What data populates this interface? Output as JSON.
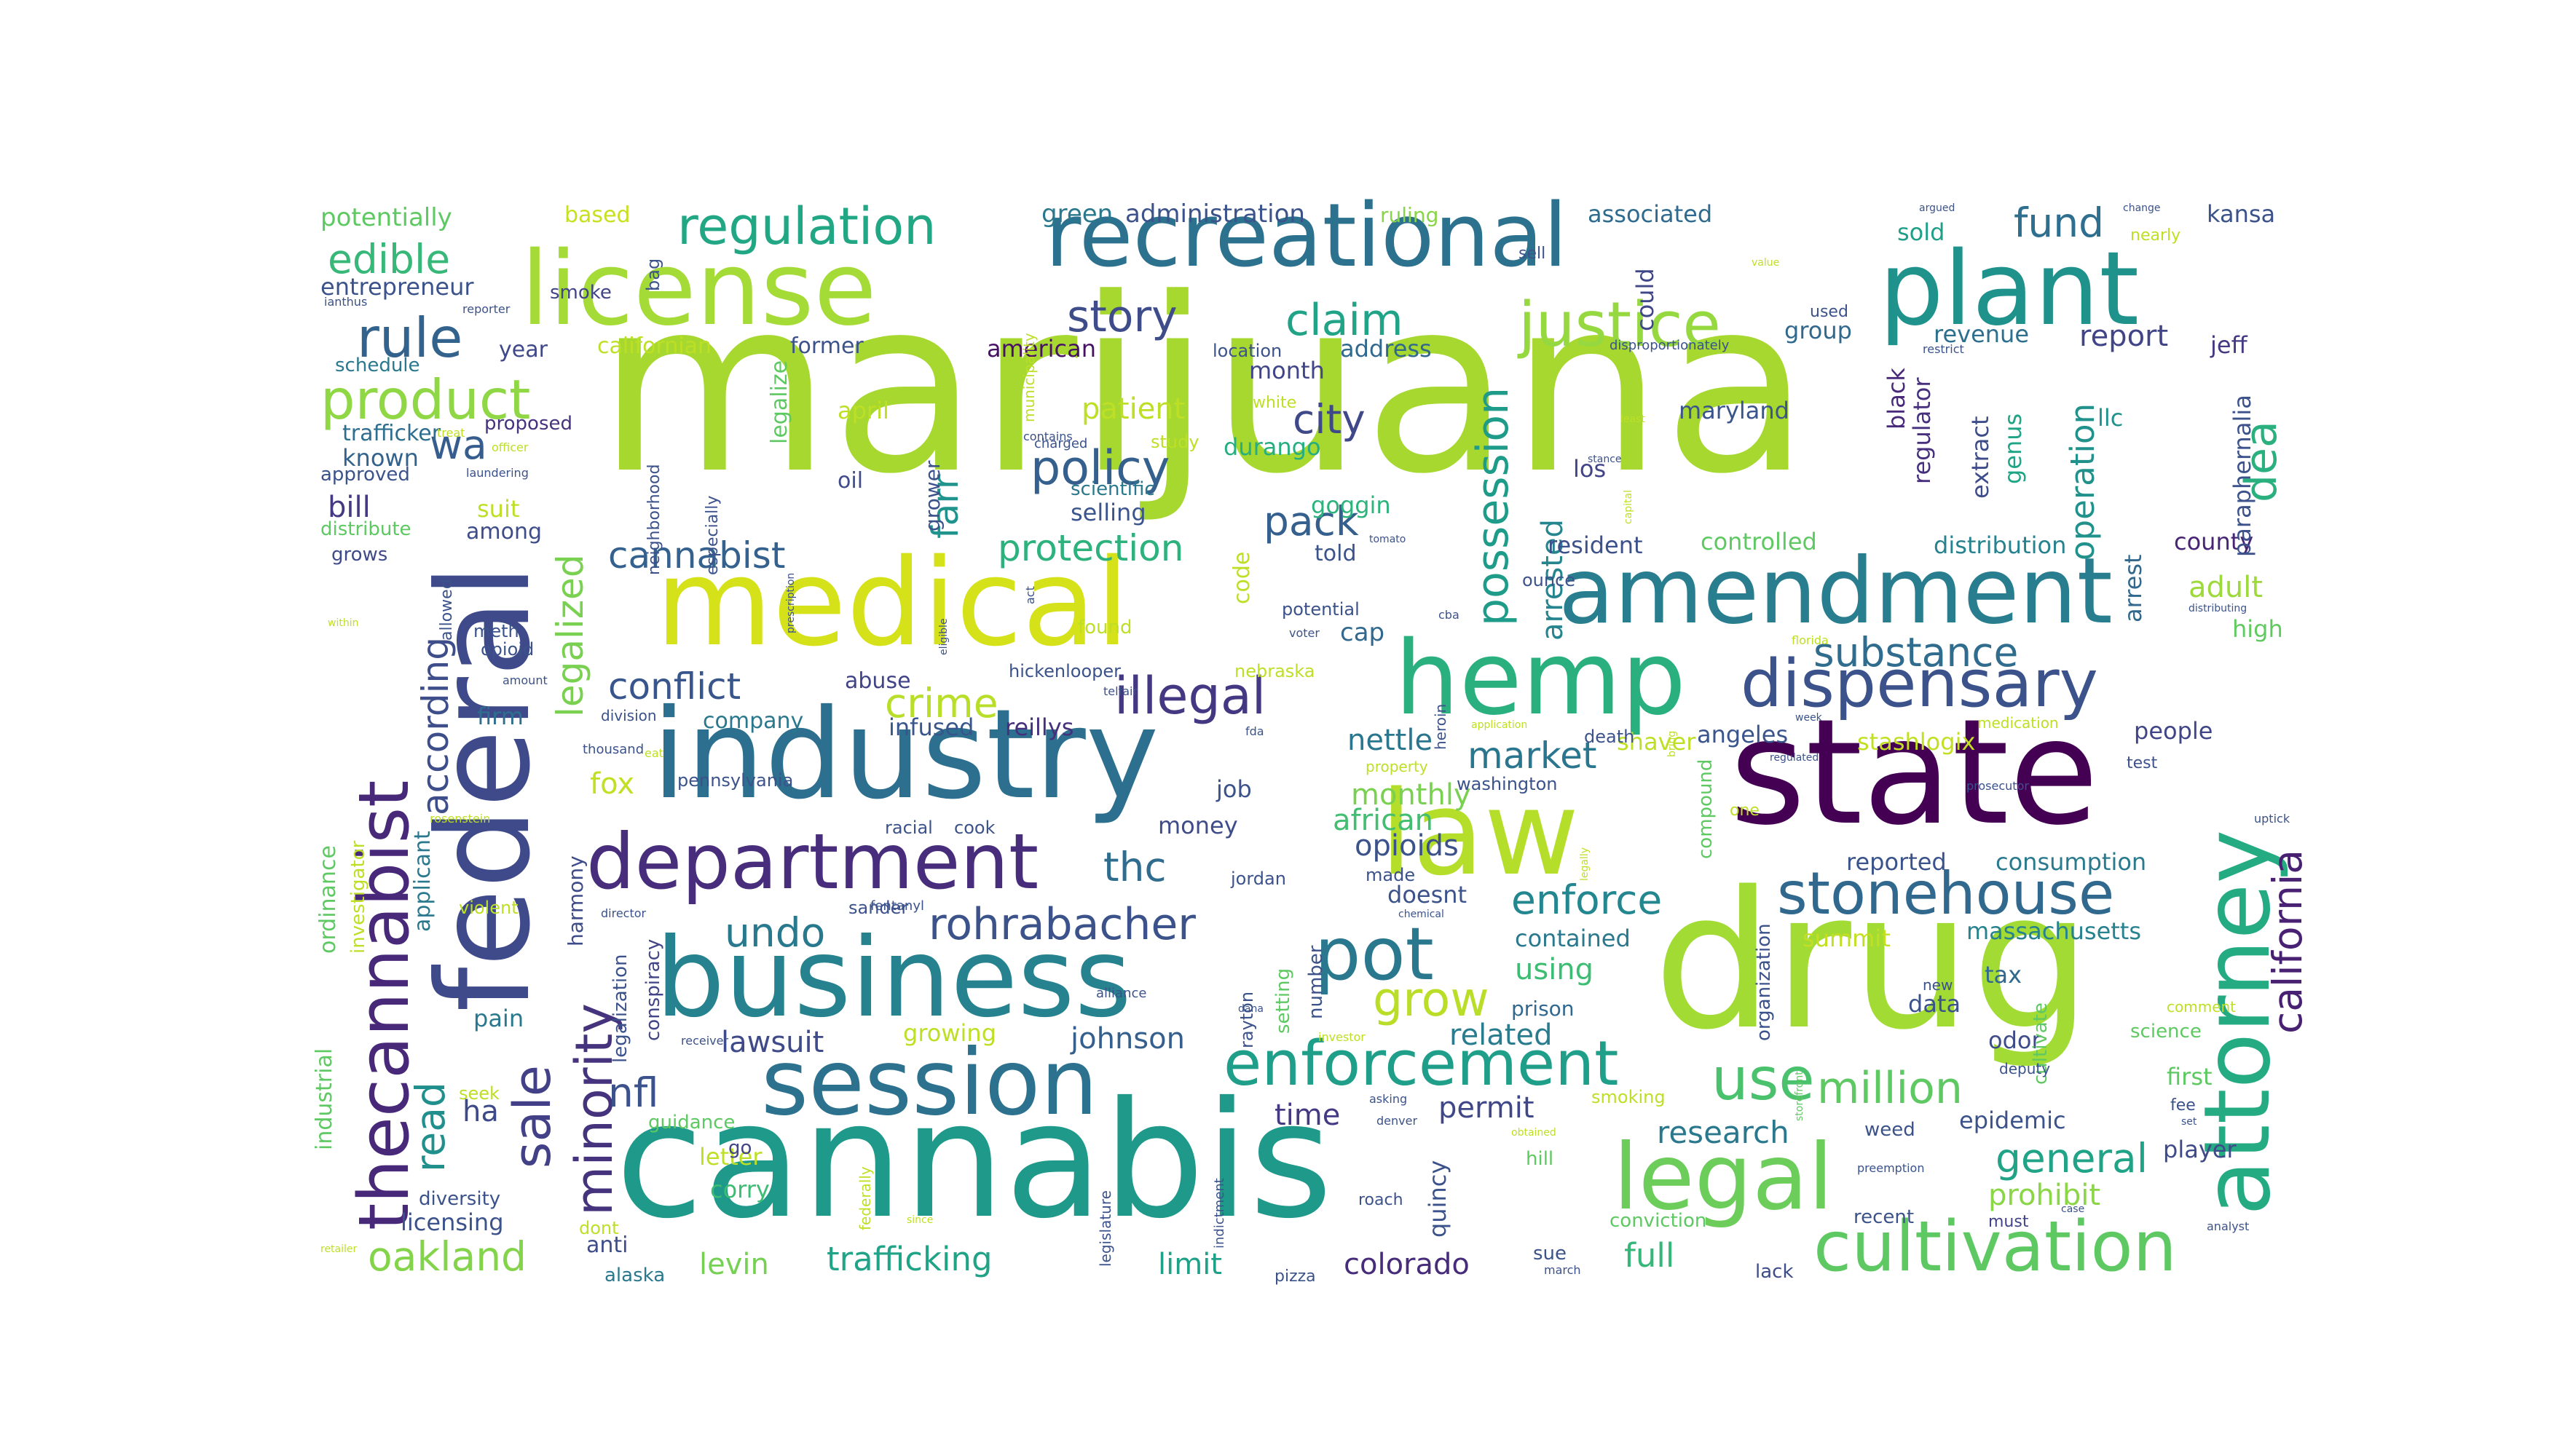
{
  "words": [
    {
      "text": "marijuana",
      "color": "#a6d82f"
    },
    {
      "text": "cannabis",
      "color": "#1f998a"
    },
    {
      "text": "drug",
      "color": "#a2db34"
    },
    {
      "text": "state",
      "color": "#440154"
    },
    {
      "text": "federal",
      "color": "#3e4a89"
    },
    {
      "text": "industry",
      "color": "#2d6f8e"
    },
    {
      "text": "medical",
      "color": "#d5e21a"
    },
    {
      "text": "business",
      "color": "#26828e"
    },
    {
      "text": "law",
      "color": "#b5de2b"
    },
    {
      "text": "license",
      "color": "#a5db36"
    },
    {
      "text": "recreational",
      "color": "#2c728e"
    },
    {
      "text": "plant",
      "color": "#20928c"
    },
    {
      "text": "hemp",
      "color": "#2ab07f"
    },
    {
      "text": "session",
      "color": "#2c718e"
    },
    {
      "text": "attorney",
      "color": "#25ab82"
    },
    {
      "text": "amendment",
      "color": "#287d8e"
    },
    {
      "text": "department",
      "color": "#472d7b"
    },
    {
      "text": "legal",
      "color": "#6ccd5a"
    },
    {
      "text": "thecannabist",
      "color": "#482878"
    },
    {
      "text": "cultivation",
      "color": "#5ec962"
    },
    {
      "text": "dispensary",
      "color": "#3b528b"
    },
    {
      "text": "enforcement",
      "color": "#1f9e89"
    },
    {
      "text": "stonehouse",
      "color": "#31688e"
    },
    {
      "text": "pot",
      "color": "#2a788e"
    },
    {
      "text": "regulation",
      "color": "#22a785"
    },
    {
      "text": "justice",
      "color": "#95d840"
    },
    {
      "text": "product",
      "color": "#8fd744"
    },
    {
      "text": "possession",
      "color": "#1e9c89"
    },
    {
      "text": "rohrabacher",
      "color": "#3b528b"
    },
    {
      "text": "minority",
      "color": "#46337e"
    },
    {
      "text": "sale",
      "color": "#424086"
    },
    {
      "text": "illegal",
      "color": "#453882"
    },
    {
      "text": "policy",
      "color": "#35608d"
    },
    {
      "text": "grow",
      "color": "#bade28"
    },
    {
      "text": "story",
      "color": "#3e4c8a"
    },
    {
      "text": "claim",
      "color": "#20a386"
    },
    {
      "text": "rule",
      "color": "#33638d"
    },
    {
      "text": "oakland",
      "color": "#84d44b"
    },
    {
      "text": "edible",
      "color": "#37b878"
    },
    {
      "text": "california",
      "color": "#482173"
    },
    {
      "text": "substance",
      "color": "#2f6c8e"
    },
    {
      "text": "million",
      "color": "#5ec962"
    },
    {
      "text": "use",
      "color": "#4ac16d"
    },
    {
      "text": "crime",
      "color": "#b8de29"
    },
    {
      "text": "pack",
      "color": "#355f8d"
    },
    {
      "text": "undo",
      "color": "#29798e"
    },
    {
      "text": "legalized",
      "color": "#7ad151"
    },
    {
      "text": "according",
      "color": "#3d4e8a"
    },
    {
      "text": "market",
      "color": "#2a768e"
    },
    {
      "text": "conflict",
      "color": "#39568c"
    },
    {
      "text": "enforce",
      "color": "#24868e"
    },
    {
      "text": "general",
      "color": "#20a386"
    },
    {
      "text": "city",
      "color": "#3f4889"
    },
    {
      "text": "dea",
      "color": "#2ab07f"
    },
    {
      "text": "protection",
      "color": "#2db27d"
    },
    {
      "text": "cannabist",
      "color": "#34618d"
    },
    {
      "text": "farr",
      "color": "#20938c"
    },
    {
      "text": "fund",
      "color": "#2e6e8e"
    },
    {
      "text": "arrested",
      "color": "#25858e"
    },
    {
      "text": "operation",
      "color": "#21918c"
    },
    {
      "text": "read",
      "color": "#21908d"
    },
    {
      "text": "nfl",
      "color": "#3b528b"
    },
    {
      "text": "thc",
      "color": "#2f6c8e"
    },
    {
      "text": "research",
      "color": "#2a788e"
    },
    {
      "text": "trafficking",
      "color": "#20a386"
    },
    {
      "text": "lawsuit",
      "color": "#3e4a89"
    },
    {
      "text": "johnson",
      "color": "#355f8d"
    },
    {
      "text": "levin",
      "color": "#75d054"
    },
    {
      "text": "colorado",
      "color": "#472c7a"
    },
    {
      "text": "full",
      "color": "#35b779"
    },
    {
      "text": "limit",
      "color": "#1fa088"
    },
    {
      "text": "time",
      "color": "#443a83"
    },
    {
      "text": "permit",
      "color": "#3f4788"
    },
    {
      "text": "related",
      "color": "#297b8e"
    },
    {
      "text": "using",
      "color": "#3dbc74"
    },
    {
      "text": "prohibit",
      "color": "#8bd646"
    },
    {
      "text": "reported",
      "color": "#3a538b"
    },
    {
      "text": "consumption",
      "color": "#297a8e"
    },
    {
      "text": "massachusetts",
      "color": "#26828e"
    },
    {
      "text": "summit",
      "color": "#c2df23"
    },
    {
      "text": "people",
      "color": "#404588"
    },
    {
      "text": "adult",
      "color": "#9dd93b"
    },
    {
      "text": "county",
      "color": "#482475"
    },
    {
      "text": "paraphernalia",
      "color": "#3b528b"
    },
    {
      "text": "high",
      "color": "#60ca60"
    },
    {
      "text": "arrest",
      "color": "#31688e"
    },
    {
      "text": "llc",
      "color": "#21918c"
    },
    {
      "text": "genus",
      "color": "#20a486"
    },
    {
      "text": "extract",
      "color": "#3e4c8a"
    },
    {
      "text": "regulator",
      "color": "#46307e"
    },
    {
      "text": "black",
      "color": "#482979"
    },
    {
      "text": "maryland",
      "color": "#3a548c"
    },
    {
      "text": "los",
      "color": "#414487"
    },
    {
      "text": "could",
      "color": "#3f4788"
    },
    {
      "text": "resident",
      "color": "#3c508b"
    },
    {
      "text": "controlled",
      "color": "#5ec962"
    },
    {
      "text": "distribution",
      "color": "#26828e"
    },
    {
      "text": "report",
      "color": "#414487"
    },
    {
      "text": "revenue",
      "color": "#2e6e8e"
    },
    {
      "text": "sold",
      "color": "#1f9f88"
    },
    {
      "text": "group",
      "color": "#31688e"
    },
    {
      "text": "associated",
      "color": "#2f6b8e"
    },
    {
      "text": "kansa",
      "color": "#3b528b"
    },
    {
      "text": "jeff",
      "color": "#443983"
    },
    {
      "text": "goggin",
      "color": "#2eb37c"
    },
    {
      "text": "selling",
      "color": "#3a548c"
    },
    {
      "text": "patient",
      "color": "#bddf26"
    },
    {
      "text": "month",
      "color": "#404588"
    },
    {
      "text": "durango",
      "color": "#26ad81"
    },
    {
      "text": "address",
      "color": "#31688e"
    },
    {
      "text": "american",
      "color": "#471164"
    },
    {
      "text": "former",
      "color": "#3b528b"
    },
    {
      "text": "californian",
      "color": "#bddf26"
    },
    {
      "text": "year",
      "color": "#3f4889"
    },
    {
      "text": "wa",
      "color": "#365d8d"
    },
    {
      "text": "known",
      "color": "#33638d"
    },
    {
      "text": "bill",
      "color": "#443983"
    },
    {
      "text": "approved",
      "color": "#3b528b"
    },
    {
      "text": "distribute",
      "color": "#5ec962"
    },
    {
      "text": "grows",
      "color": "#3e4a89"
    },
    {
      "text": "trafficker",
      "color": "#2e6e8e"
    },
    {
      "text": "proposed",
      "color": "#46337e"
    },
    {
      "text": "schedule",
      "color": "#2a788e"
    },
    {
      "text": "entrepreneur",
      "color": "#3b528b"
    },
    {
      "text": "smoke",
      "color": "#414487"
    },
    {
      "text": "potentially",
      "color": "#5ec962"
    },
    {
      "text": "based",
      "color": "#c8e020"
    },
    {
      "text": "green",
      "color": "#2a788e"
    },
    {
      "text": "administration",
      "color": "#3b528b"
    },
    {
      "text": "ruling",
      "color": "#89d548"
    },
    {
      "text": "nettle",
      "color": "#2a768e"
    },
    {
      "text": "monthly",
      "color": "#7ad151"
    },
    {
      "text": "african",
      "color": "#42be71"
    },
    {
      "text": "opioids",
      "color": "#3b528b"
    },
    {
      "text": "fox",
      "color": "#c2df23"
    },
    {
      "text": "firm",
      "color": "#2e6e8e"
    },
    {
      "text": "ha",
      "color": "#3e4989"
    },
    {
      "text": "among",
      "color": "#3e4c8a"
    },
    {
      "text": "suit",
      "color": "#bddf26"
    },
    {
      "text": "company",
      "color": "#2a788e"
    },
    {
      "text": "infused",
      "color": "#39568c"
    },
    {
      "text": "abuse",
      "color": "#414487"
    },
    {
      "text": "reillys",
      "color": "#46307e"
    },
    {
      "text": "job",
      "color": "#3b528b"
    },
    {
      "text": "money",
      "color": "#3e4c8a"
    },
    {
      "text": "doesnt",
      "color": "#3b528b"
    },
    {
      "text": "contained",
      "color": "#2a788e"
    },
    {
      "text": "prison",
      "color": "#31688e"
    },
    {
      "text": "angeles",
      "color": "#3a548c"
    },
    {
      "text": "shaver",
      "color": "#bddf26"
    },
    {
      "text": "stashlogix",
      "color": "#c2df23"
    },
    {
      "text": "odor",
      "color": "#3e4c8a"
    },
    {
      "text": "data",
      "color": "#3b528b"
    },
    {
      "text": "tax",
      "color": "#31688e"
    },
    {
      "text": "player",
      "color": "#3e4a89"
    },
    {
      "text": "epidemic",
      "color": "#3b528b"
    },
    {
      "text": "first",
      "color": "#5ec962"
    },
    {
      "text": "weed",
      "color": "#3b528b"
    },
    {
      "text": "lack",
      "color": "#3e4c8a"
    },
    {
      "text": "recent",
      "color": "#3b528b"
    },
    {
      "text": "must",
      "color": "#414487"
    },
    {
      "text": "science",
      "color": "#5ec962"
    },
    {
      "text": "fee",
      "color": "#3b528b"
    },
    {
      "text": "licensing",
      "color": "#3b528b"
    },
    {
      "text": "corry",
      "color": "#3dbc74"
    },
    {
      "text": "letter",
      "color": "#bddf26"
    },
    {
      "text": "pain",
      "color": "#2a788e"
    },
    {
      "text": "anti",
      "color": "#3e4c8a"
    },
    {
      "text": "alaska",
      "color": "#2a788e"
    },
    {
      "text": "go",
      "color": "#414487"
    },
    {
      "text": "growing",
      "color": "#bddf26"
    },
    {
      "text": "quincy",
      "color": "#3b528b"
    },
    {
      "text": "sue",
      "color": "#3b528b"
    },
    {
      "text": "cap",
      "color": "#31688e"
    },
    {
      "text": "told",
      "color": "#3b528b"
    },
    {
      "text": "code",
      "color": "#bddf26"
    },
    {
      "text": "oil",
      "color": "#3e4c8a"
    },
    {
      "text": "april",
      "color": "#bddf26"
    },
    {
      "text": "legalize",
      "color": "#5ec962"
    },
    {
      "text": "grower",
      "color": "#3b528b"
    },
    {
      "text": "ordinance",
      "color": "#5ec962"
    },
    {
      "text": "industrial",
      "color": "#5ec962"
    },
    {
      "text": "investigator",
      "color": "#bddf26"
    },
    {
      "text": "applicant",
      "color": "#2a788e"
    },
    {
      "text": "legalization",
      "color": "#3b528b"
    },
    {
      "text": "conspiracy",
      "color": "#414487"
    },
    {
      "text": "organization",
      "color": "#3b528b"
    },
    {
      "text": "compound",
      "color": "#5ec962"
    },
    {
      "text": "cultivate",
      "color": "#5ec962"
    },
    {
      "text": "setting",
      "color": "#5ec962"
    },
    {
      "text": "number",
      "color": "#3b528b"
    },
    {
      "text": "potential",
      "color": "#3b528b"
    },
    {
      "text": "found",
      "color": "#bddf26"
    },
    {
      "text": "scientific",
      "color": "#2a788e"
    },
    {
      "text": "study",
      "color": "#bddf26"
    },
    {
      "text": "harmony",
      "color": "#3e4c8a"
    },
    {
      "text": "opioid",
      "color": "#3b528b"
    },
    {
      "text": "pennsylvania",
      "color": "#3b528b"
    },
    {
      "text": "racial",
      "color": "#3b528b"
    },
    {
      "text": "cook",
      "color": "#3b528b"
    },
    {
      "text": "hickenlooper",
      "color": "#3b528b"
    },
    {
      "text": "sander",
      "color": "#3b528b"
    },
    {
      "text": "jordan",
      "color": "#3b528b"
    },
    {
      "text": "nebraska",
      "color": "#bddf26"
    },
    {
      "text": "washington",
      "color": "#3b528b"
    },
    {
      "text": "made",
      "color": "#3b528b"
    },
    {
      "text": "rayton",
      "color": "#3b528b"
    },
    {
      "text": "death",
      "color": "#3b528b"
    },
    {
      "text": "hill",
      "color": "#5ec962"
    },
    {
      "text": "smoking",
      "color": "#bddf26"
    },
    {
      "text": "conviction",
      "color": "#5ec962"
    },
    {
      "text": "guidance",
      "color": "#5ec962"
    },
    {
      "text": "diversity",
      "color": "#3b528b"
    },
    {
      "text": "dont",
      "color": "#bddf26"
    },
    {
      "text": "seek",
      "color": "#bddf26"
    },
    {
      "text": "violent",
      "color": "#bddf26"
    },
    {
      "text": "meth",
      "color": "#3b528b"
    },
    {
      "text": "allowed",
      "color": "#3b528b"
    },
    {
      "text": "division",
      "color": "#3b528b"
    },
    {
      "text": "especially",
      "color": "#3b528b"
    },
    {
      "text": "neighborhood",
      "color": "#3b528b"
    },
    {
      "text": "municipality",
      "color": "#bddf26"
    },
    {
      "text": "location",
      "color": "#3b528b"
    },
    {
      "text": "bag",
      "color": "#3b528b"
    },
    {
      "text": "ounce",
      "color": "#3b528b"
    },
    {
      "text": "heroin",
      "color": "#3b528b"
    },
    {
      "text": "white",
      "color": "#bddf26"
    },
    {
      "text": "deputy",
      "color": "#3b528b"
    },
    {
      "text": "new",
      "color": "#3b528b"
    },
    {
      "text": "fentanyl",
      "color": "#3b528b"
    },
    {
      "text": "director",
      "color": "#3b528b"
    },
    {
      "text": "federally",
      "color": "#bddf26"
    },
    {
      "text": "legislature",
      "color": "#3b528b"
    },
    {
      "text": "indictment",
      "color": "#3b528b"
    },
    {
      "text": "pizza",
      "color": "#3b528b"
    },
    {
      "text": "charged",
      "color": "#3b528b"
    },
    {
      "text": "one",
      "color": "#bddf26"
    },
    {
      "text": "test",
      "color": "#3b528b"
    },
    {
      "text": "comment",
      "color": "#bddf26"
    },
    {
      "text": "nearly",
      "color": "#bddf26"
    },
    {
      "text": "sell",
      "color": "#3b528b"
    },
    {
      "text": "used",
      "color": "#3b528b"
    },
    {
      "text": "amount",
      "color": "#3b528b"
    },
    {
      "text": "laundering",
      "color": "#3b528b"
    },
    {
      "text": "officer",
      "color": "#bddf26"
    },
    {
      "text": "treat",
      "color": "#bddf26"
    },
    {
      "text": "within",
      "color": "#bddf26"
    },
    {
      "text": "ianthus",
      "color": "#3b528b"
    },
    {
      "text": "reporter",
      "color": "#3b528b"
    },
    {
      "text": "thousand",
      "color": "#3b528b"
    },
    {
      "text": "rosenstein",
      "color": "#bddf26"
    },
    {
      "text": "receiver",
      "color": "#3b528b"
    },
    {
      "text": "investor",
      "color": "#bddf26"
    },
    {
      "text": "alliance",
      "color": "#3b528b"
    },
    {
      "text": "asking",
      "color": "#3b528b"
    },
    {
      "text": "denver",
      "color": "#3b528b"
    },
    {
      "text": "obtained",
      "color": "#bddf26"
    },
    {
      "text": "since",
      "color": "#bddf26"
    },
    {
      "text": "retailer",
      "color": "#bddf26"
    },
    {
      "text": "analyst",
      "color": "#3b528b"
    },
    {
      "text": "case",
      "color": "#3b528b"
    },
    {
      "text": "set",
      "color": "#3b528b"
    },
    {
      "text": "march",
      "color": "#3b528b"
    },
    {
      "text": "prosecutor",
      "color": "#3b528b"
    },
    {
      "text": "preemption",
      "color": "#3b528b"
    },
    {
      "text": "storefront",
      "color": "#5ec962"
    },
    {
      "text": "uptick",
      "color": "#3b528b"
    },
    {
      "text": "medication",
      "color": "#bddf26"
    },
    {
      "text": "regulated",
      "color": "#3b528b"
    },
    {
      "text": "week",
      "color": "#3b528b"
    },
    {
      "text": "application",
      "color": "#bddf26"
    },
    {
      "text": "legally",
      "color": "#bddf26"
    },
    {
      "text": "bring",
      "color": "#bddf26"
    },
    {
      "text": "florida",
      "color": "#bddf26"
    },
    {
      "text": "distributing",
      "color": "#3b528b"
    },
    {
      "text": "stance",
      "color": "#3b528b"
    },
    {
      "text": "capital",
      "color": "#bddf26"
    },
    {
      "text": "least",
      "color": "#bddf26"
    },
    {
      "text": "value",
      "color": "#bddf26"
    },
    {
      "text": "disproportionately",
      "color": "#3b528b"
    },
    {
      "text": "restrict",
      "color": "#3b528b"
    },
    {
      "text": "change",
      "color": "#3b528b"
    },
    {
      "text": "argued",
      "color": "#3b528b"
    },
    {
      "text": "chemical",
      "color": "#3b528b"
    },
    {
      "text": "tomato",
      "color": "#3b528b"
    },
    {
      "text": "cba",
      "color": "#3b528b"
    },
    {
      "text": "voter",
      "color": "#3b528b"
    },
    {
      "text": "eligible",
      "color": "#3b528b"
    },
    {
      "text": "act",
      "color": "#3b528b"
    },
    {
      "text": "contains",
      "color": "#3b528b"
    },
    {
      "text": "telfair",
      "color": "#3b528b"
    },
    {
      "text": "fda",
      "color": "#3b528b"
    },
    {
      "text": "prescription",
      "color": "#3b528b"
    },
    {
      "text": "roach",
      "color": "#3b528b"
    },
    {
      "text": "property",
      "color": "#bddf26"
    },
    {
      "text": "dana",
      "color": "#3b528b"
    },
    {
      "text": "eat",
      "color": "#bddf26"
    }
  ]
}
